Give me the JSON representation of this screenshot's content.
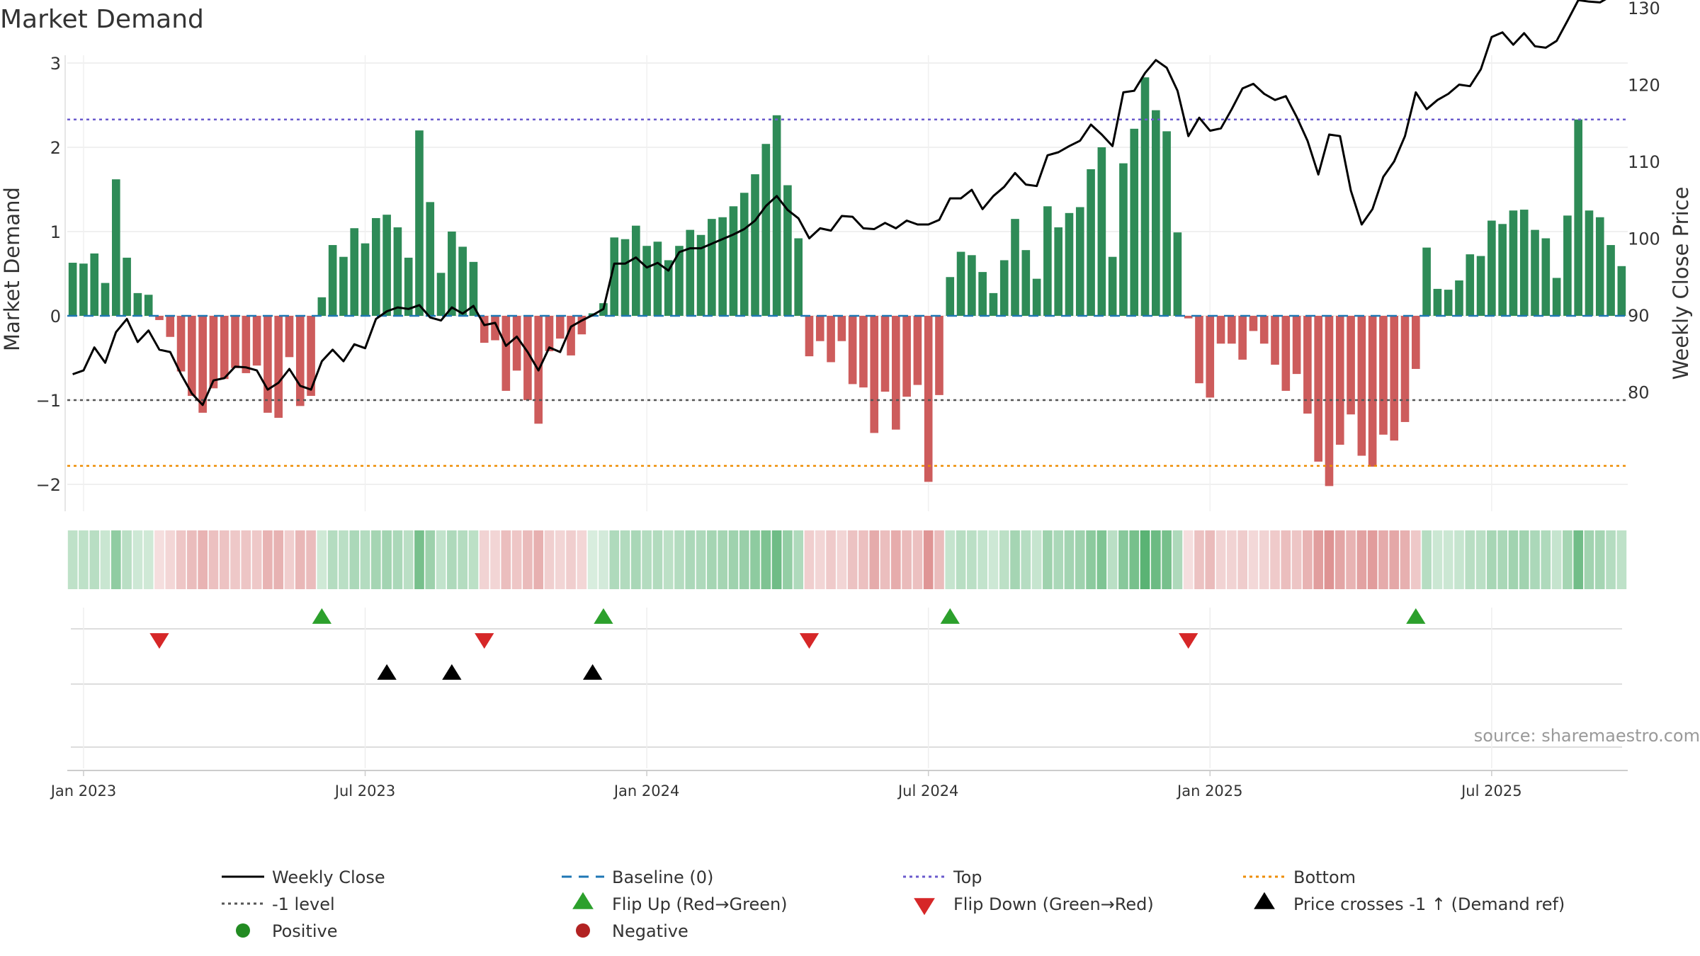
{
  "chart_data": {
    "type": "bar",
    "title": "Market Demand",
    "ylabel": "Market Demand",
    "y2label": "Weekly Close Price",
    "ylim": [
      -2.3,
      3.1
    ],
    "y2lim": [
      77.5,
      133.5
    ],
    "yticks": [
      "3",
      "2",
      "1",
      "0",
      "−1",
      "−2"
    ],
    "ytick_values": [
      3,
      2,
      1,
      0,
      -1,
      -2
    ],
    "y2ticks": [
      "130",
      "120",
      "110",
      "100",
      "90",
      "80"
    ],
    "y2tick_values": [
      130,
      120,
      110,
      100,
      90,
      80
    ],
    "xticks": [
      "Jan 2023",
      "Jul 2023",
      "Jan 2024",
      "Jul 2024",
      "Jan 2025",
      "Jul 2025"
    ],
    "xtick_weeks": [
      1.5,
      27.5,
      53.5,
      79.5,
      105.5,
      131.5
    ],
    "levels": {
      "top": 2.33,
      "minus_one": -1,
      "bottom": -1.78,
      "baseline": 0
    },
    "demand": [
      0.63,
      0.62,
      0.74,
      0.39,
      1.62,
      0.69,
      0.27,
      0.25,
      -0.05,
      -0.25,
      -0.66,
      -0.95,
      -1.15,
      -0.86,
      -0.75,
      -0.62,
      -0.68,
      -0.59,
      -1.15,
      -1.21,
      -0.49,
      -1.07,
      -0.95,
      0.22,
      0.84,
      0.7,
      1.04,
      0.86,
      1.16,
      1.2,
      1.05,
      0.69,
      2.2,
      1.35,
      0.51,
      1.0,
      0.82,
      0.64,
      -0.32,
      -0.29,
      -0.89,
      -0.65,
      -1.0,
      -1.28,
      -0.42,
      -0.27,
      -0.47,
      -0.22,
      0.03,
      0.15,
      0.93,
      0.91,
      1.07,
      0.83,
      0.88,
      0.66,
      0.83,
      1.02,
      0.96,
      1.15,
      1.17,
      1.3,
      1.46,
      1.68,
      2.04,
      2.38,
      1.55,
      0.92,
      -0.48,
      -0.3,
      -0.55,
      -0.3,
      -0.81,
      -0.85,
      -1.39,
      -0.9,
      -1.35,
      -0.96,
      -0.82,
      -1.97,
      -0.94,
      0.46,
      0.76,
      0.72,
      0.52,
      0.27,
      0.66,
      1.15,
      0.78,
      0.44,
      1.3,
      1.05,
      1.22,
      1.29,
      1.74,
      2.0,
      0.7,
      1.81,
      2.22,
      2.83,
      2.44,
      2.19,
      0.99,
      -0.03,
      -0.8,
      -0.97,
      -0.33,
      -0.33,
      -0.52,
      -0.18,
      -0.33,
      -0.58,
      -0.89,
      -0.69,
      -1.16,
      -1.73,
      -2.02,
      -1.53,
      -1.17,
      -1.66,
      -1.79,
      -1.41,
      -1.48,
      -1.26,
      -0.63,
      0.81,
      0.32,
      0.31,
      0.42,
      0.73,
      0.71,
      1.13,
      1.09,
      1.25,
      1.26,
      1.02,
      0.92,
      0.45,
      1.19,
      2.33,
      1.25,
      1.17,
      0.84,
      0.59
    ],
    "price": [
      82.3,
      82.8,
      85.8,
      83.8,
      87.8,
      89.5,
      86.5,
      88.0,
      85.5,
      85.2,
      82.3,
      79.8,
      78.3,
      81.5,
      81.8,
      83.3,
      83.2,
      82.8,
      80.3,
      81.2,
      83.0,
      80.8,
      80.3,
      84.0,
      85.5,
      84.0,
      86.2,
      85.7,
      89.5,
      90.5,
      91.0,
      90.8,
      91.3,
      89.7,
      89.3,
      91.0,
      90.2,
      91.2,
      88.7,
      89.0,
      86.0,
      87.2,
      85.2,
      82.8,
      85.8,
      85.2,
      88.5,
      89.3,
      90.0,
      90.8,
      96.7,
      96.7,
      97.5,
      96.2,
      96.8,
      95.8,
      98.2,
      98.7,
      98.7,
      99.3,
      99.9,
      100.5,
      101.2,
      102.3,
      104.2,
      105.5,
      103.7,
      102.6,
      100.0,
      101.3,
      101.0,
      102.9,
      102.8,
      101.3,
      101.2,
      102.0,
      101.3,
      102.3,
      101.8,
      101.8,
      102.4,
      105.2,
      105.2,
      106.3,
      103.8,
      105.5,
      106.7,
      108.5,
      107.0,
      106.8,
      110.8,
      111.2,
      112.0,
      112.7,
      114.8,
      113.5,
      112.0,
      119.0,
      119.2,
      121.5,
      123.2,
      122.2,
      119.2,
      113.3,
      115.7,
      114.0,
      114.3,
      116.8,
      119.5,
      120.1,
      118.8,
      118.0,
      118.5,
      115.8,
      112.7,
      108.3,
      113.5,
      113.3,
      106.2,
      101.8,
      103.8,
      108.0,
      110.0,
      113.3,
      119.0,
      116.8,
      118.0,
      118.8,
      120.0,
      119.8,
      122.0,
      126.2,
      126.8,
      125.2,
      126.7,
      125.0,
      124.8,
      125.7,
      128.3,
      131.0,
      130.8,
      130.7,
      131.5,
      131.4
    ],
    "flip_up_weeks": [
      23.5,
      49.5,
      81.5,
      124.5
    ],
    "flip_down_weeks": [
      8.5,
      38.5,
      68.5,
      103.5
    ],
    "price_cross_weeks": [
      29.5,
      35.5,
      48.5
    ],
    "legend": [
      {
        "label": "Weekly Close",
        "kind": "line-solid",
        "color": "#000000"
      },
      {
        "label": "Baseline (0)",
        "kind": "line-dash",
        "color": "#1f77b4"
      },
      {
        "label": "Top",
        "kind": "line-dot",
        "color": "#6a5acd"
      },
      {
        "label": "Bottom",
        "kind": "line-dot",
        "color": "#ee8c00"
      },
      {
        "label": "-1 level",
        "kind": "line-dot",
        "color": "#555555"
      },
      {
        "label": "Flip Up (Red→Green)",
        "kind": "tri-up",
        "color": "#2ca02c"
      },
      {
        "label": "Flip Down (Green→Red)",
        "kind": "tri-down",
        "color": "#d62728"
      },
      {
        "label": "Price crosses -1 ↑ (Demand ref)",
        "kind": "tri-up",
        "color": "#000000"
      },
      {
        "label": "Positive",
        "kind": "dot",
        "color": "#228b22"
      },
      {
        "label": "Negative",
        "kind": "dot",
        "color": "#b22222"
      }
    ],
    "source": "source: sharemaestro.com",
    "colors": {
      "positive_bar": "#2e8b57",
      "negative_bar": "#cd5c5c",
      "price_line": "#000000",
      "heat_positive": "#2e9e4f",
      "heat_negative": "#c94f4f"
    }
  }
}
